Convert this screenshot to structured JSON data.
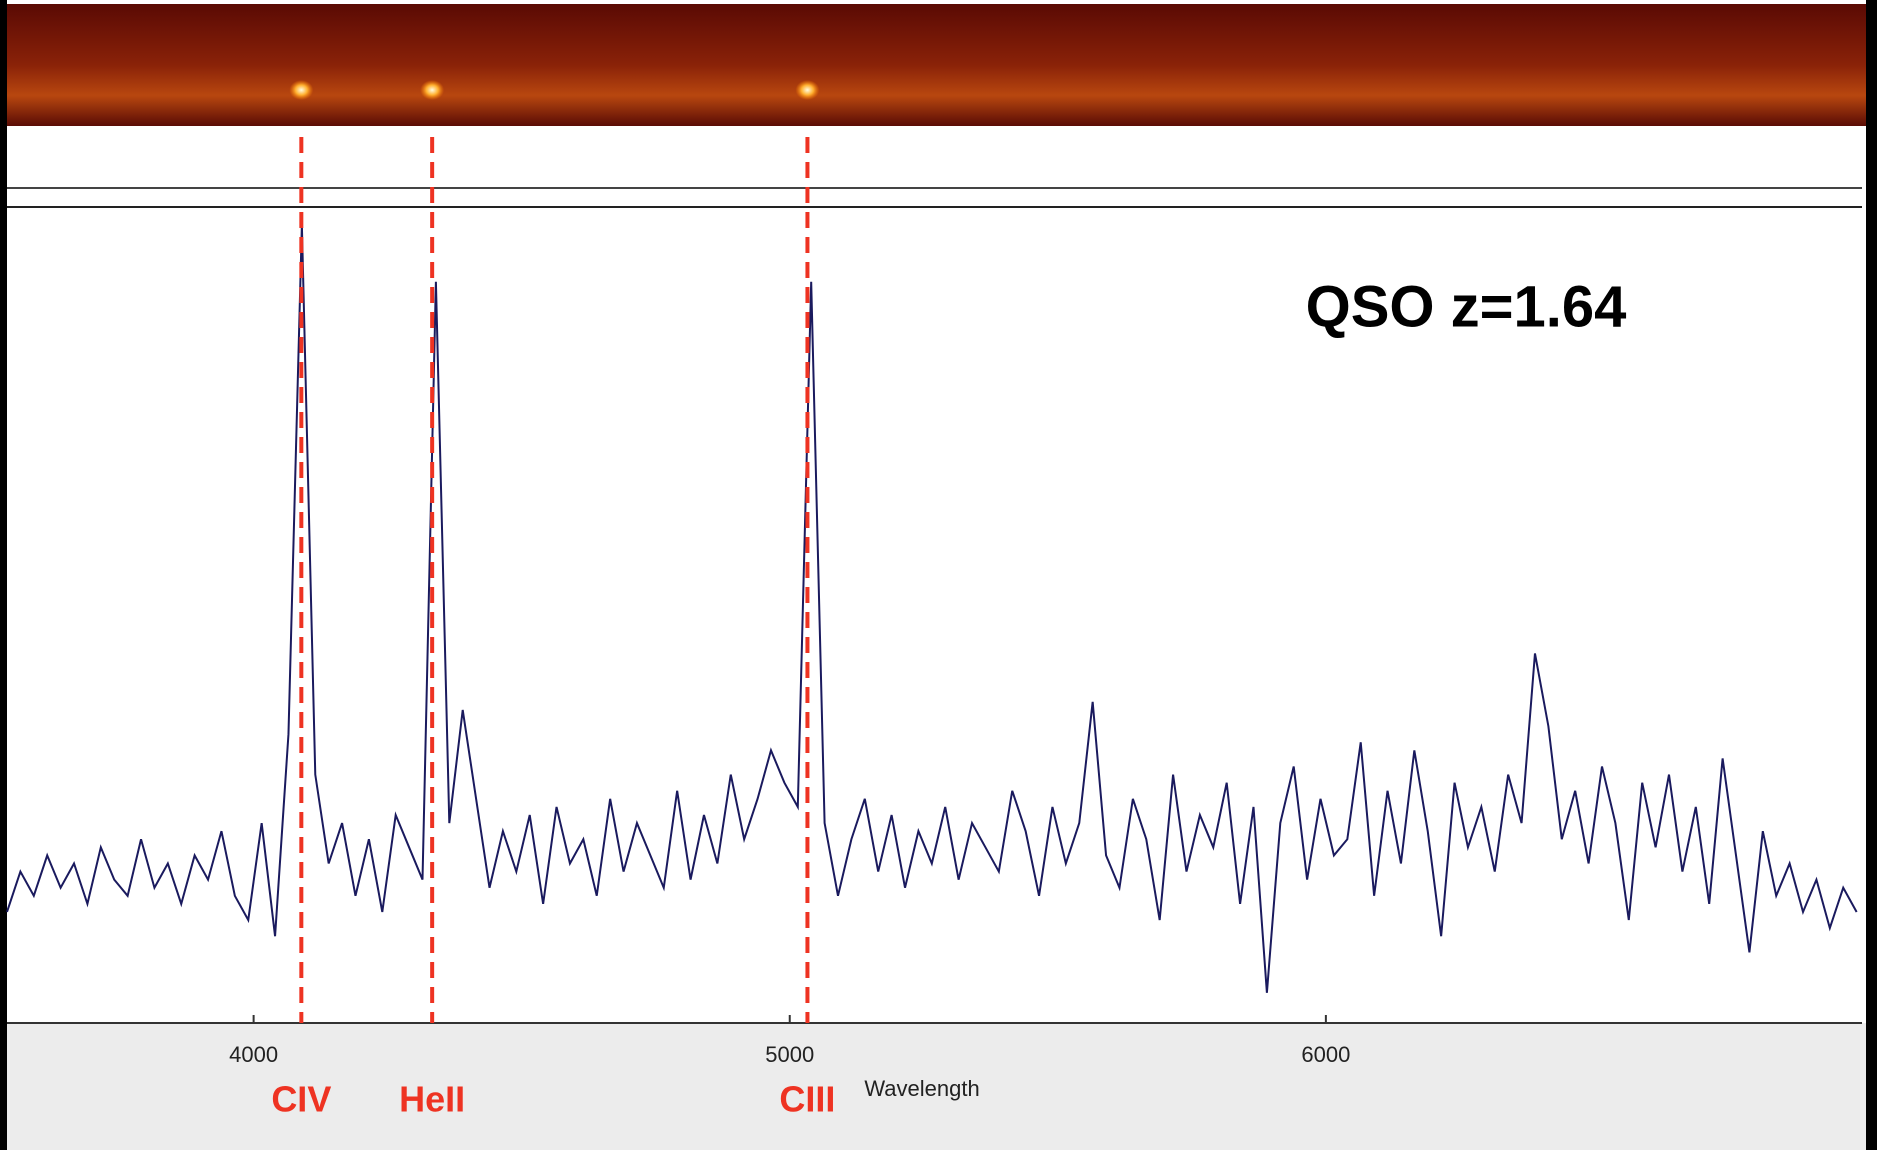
{
  "chart_data": {
    "type": "line",
    "title": "QSO z=1.64",
    "x_label": "Wavelength",
    "x": [
      3540,
      3565,
      3590,
      3615,
      3640,
      3665,
      3690,
      3715,
      3740,
      3765,
      3790,
      3815,
      3840,
      3865,
      3890,
      3915,
      3940,
      3965,
      3990,
      4015,
      4040,
      4065,
      4090,
      4115,
      4140,
      4165,
      4190,
      4215,
      4240,
      4265,
      4290,
      4315,
      4340,
      4365,
      4390,
      4415,
      4440,
      4465,
      4490,
      4515,
      4540,
      4565,
      4590,
      4615,
      4640,
      4665,
      4690,
      4715,
      4740,
      4765,
      4790,
      4815,
      4840,
      4865,
      4890,
      4915,
      4940,
      4965,
      4990,
      5015,
      5040,
      5065,
      5090,
      5115,
      5140,
      5165,
      5190,
      5215,
      5240,
      5265,
      5290,
      5315,
      5340,
      5365,
      5390,
      5415,
      5440,
      5465,
      5490,
      5515,
      5540,
      5565,
      5590,
      5615,
      5640,
      5665,
      5690,
      5715,
      5740,
      5765,
      5790,
      5815,
      5840,
      5865,
      5890,
      5915,
      5940,
      5965,
      5990,
      6015,
      6040,
      6065,
      6090,
      6115,
      6140,
      6165,
      6190,
      6215,
      6240,
      6265,
      6290,
      6315,
      6340,
      6365,
      6390,
      6415,
      6440,
      6465,
      6490,
      6515,
      6540,
      6565,
      6590,
      6615,
      6640,
      6665,
      6690,
      6715,
      6740,
      6765,
      6790,
      6815,
      6840,
      6865,
      6890,
      6915,
      6940,
      6965,
      6990
    ],
    "values": [
      13,
      18,
      15,
      20,
      16,
      19,
      14,
      21,
      17,
      15,
      22,
      16,
      19,
      14,
      20,
      17,
      23,
      15,
      12,
      24,
      10,
      35,
      98,
      30,
      19,
      24,
      15,
      22,
      13,
      25,
      21,
      17,
      91,
      24,
      38,
      27,
      16,
      23,
      18,
      25,
      14,
      26,
      19,
      22,
      15,
      27,
      18,
      24,
      20,
      16,
      28,
      17,
      25,
      19,
      30,
      22,
      27,
      33,
      29,
      26,
      91,
      24,
      15,
      22,
      27,
      18,
      25,
      16,
      23,
      19,
      26,
      17,
      24,
      21,
      18,
      28,
      23,
      15,
      26,
      19,
      24,
      39,
      20,
      16,
      27,
      22,
      12,
      30,
      18,
      25,
      21,
      29,
      14,
      26,
      3,
      24,
      31,
      17,
      27,
      20,
      22,
      34,
      15,
      28,
      19,
      33,
      23,
      10,
      29,
      21,
      26,
      18,
      30,
      24,
      45,
      36,
      22,
      28,
      19,
      31,
      24,
      12,
      29,
      21,
      30,
      18,
      26,
      14,
      32,
      20,
      8,
      23,
      15,
      19,
      13,
      17,
      11,
      16,
      13
    ],
    "color": "#1a1a5e",
    "xlim": [
      3540,
      7000
    ],
    "ylim": [
      0,
      100
    ],
    "xticks": [
      4000,
      5000,
      6000
    ],
    "lines": [
      {
        "label": "CIV",
        "x": 4089
      },
      {
        "label": "HeII",
        "x": 4333
      },
      {
        "label": "CIII",
        "x": 5033
      }
    ],
    "line_color": "#ee3322"
  }
}
